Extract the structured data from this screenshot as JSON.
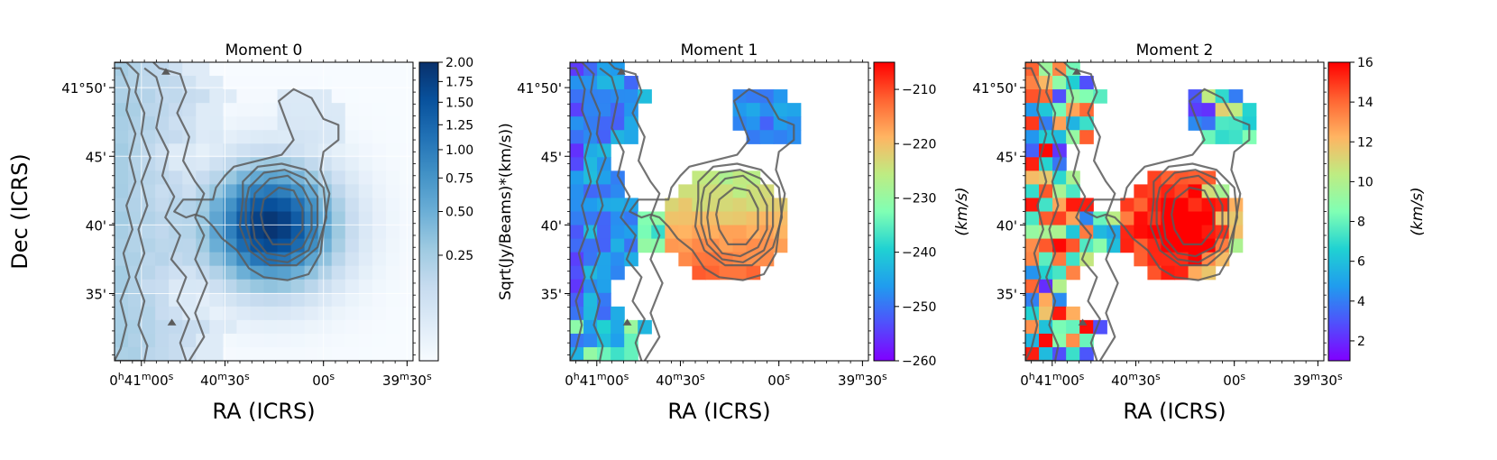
{
  "chart_data": [
    {
      "type": "heatmap",
      "title": "Moment 0",
      "xlabel": "RA (ICRS)",
      "ylabel": "Dec (ICRS)",
      "x_ticks": [
        "0h41m00s",
        "40m30s",
        "00s",
        "39m30s"
      ],
      "y_ticks": [
        "41°50'",
        "45'",
        "40'",
        "35'"
      ],
      "colormap": "Blues",
      "colorbar": {
        "label": "Sqrt(Jy/Beams)*(km/s))",
        "ticks": [
          "2.00",
          "1.75",
          "1.50",
          "1.25",
          "1.00",
          "0.75",
          "0.50",
          "0.25"
        ],
        "range": [
          0,
          2.0
        ],
        "scale": "sqrt"
      },
      "grid": true
    },
    {
      "type": "heatmap",
      "title": "Moment 1",
      "xlabel": "RA (ICRS)",
      "x_ticks": [
        "0h41m00s",
        "40m30s",
        "00s",
        "39m30s"
      ],
      "y_ticks": [
        "41°50'",
        "45'",
        "40'",
        "35'"
      ],
      "colormap": "rainbow",
      "colorbar": {
        "label": "(km/s)",
        "ticks": [
          "−210",
          "−220",
          "−230",
          "−240",
          "−250",
          "−260"
        ],
        "range": [
          -260,
          -205
        ]
      }
    },
    {
      "type": "heatmap",
      "title": "Moment 2",
      "xlabel": "RA (ICRS)",
      "x_ticks": [
        "0h41m00s",
        "40m30s",
        "00s",
        "39m30s"
      ],
      "y_ticks": [
        "41°50'",
        "45'",
        "40'",
        "35'"
      ],
      "colormap": "rainbow",
      "colorbar": {
        "label": "(km/s)",
        "ticks": [
          "16",
          "14",
          "12",
          "10",
          "8",
          "6",
          "4",
          "2"
        ],
        "range": [
          1,
          16
        ]
      }
    }
  ],
  "colors": {
    "contour": "#5a5a5a",
    "blues_low": "#f7fbff",
    "blues_high": "#08306b"
  }
}
